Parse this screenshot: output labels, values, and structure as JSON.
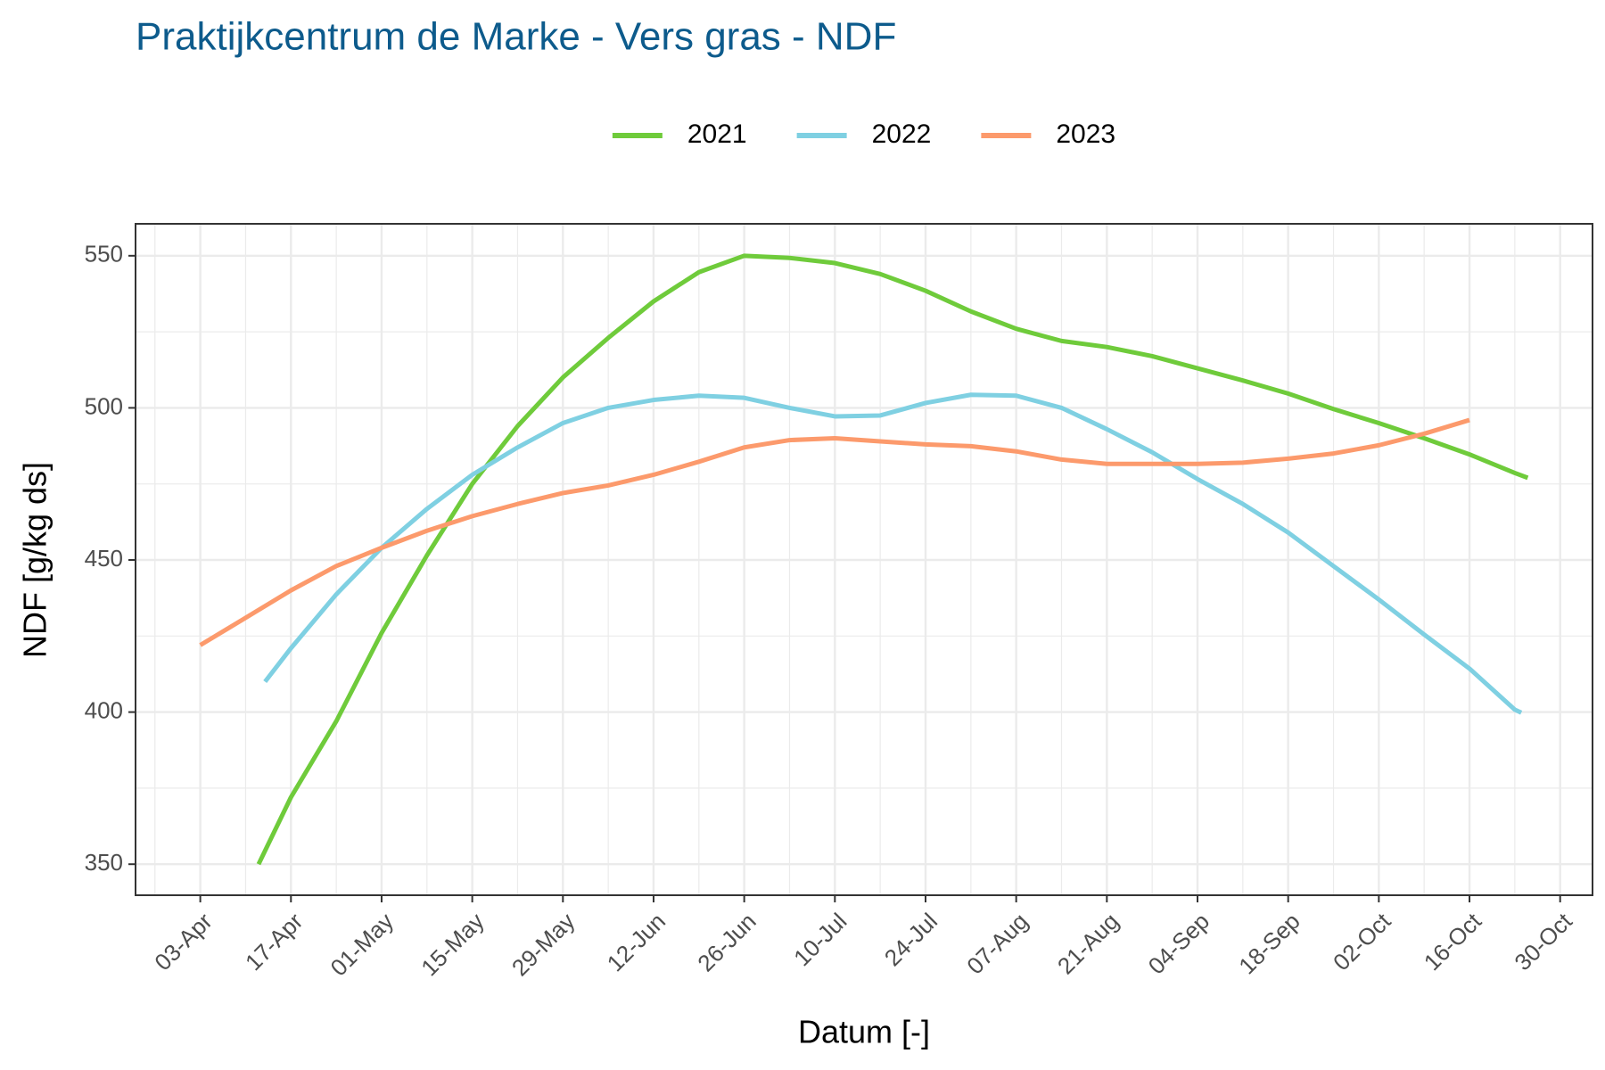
{
  "chart_data": {
    "type": "line",
    "title": "Praktijkcentrum de Marke - Vers gras - NDF",
    "x_label": "Datum [-]",
    "y_label": "NDF [g/kg ds]",
    "xlim": [
      "24-Mar",
      "04-Nov"
    ],
    "xticks": [
      "03-Apr",
      "17-Apr",
      "01-May",
      "15-May",
      "29-May",
      "12-Jun",
      "26-Jun",
      "10-Jul",
      "24-Jul",
      "07-Aug",
      "21-Aug",
      "04-Sep",
      "18-Sep",
      "02-Oct",
      "16-Oct",
      "30-Oct"
    ],
    "ylim": [
      339.8,
      560.5
    ],
    "yticks": [
      350,
      400,
      450,
      500,
      550
    ],
    "grid": true,
    "legend": "top",
    "series": [
      {
        "name": "2021",
        "color": "#6fcb3b",
        "x": [
          "12-Apr",
          "17-Apr",
          "24-Apr",
          "01-May",
          "08-May",
          "15-May",
          "22-May",
          "29-May",
          "05-Jun",
          "12-Jun",
          "19-Jun",
          "26-Jun",
          "03-Jul",
          "10-Jul",
          "17-Jul",
          "24-Jul",
          "31-Jul",
          "07-Aug",
          "14-Aug",
          "21-Aug",
          "28-Aug",
          "04-Sep",
          "11-Sep",
          "18-Sep",
          "25-Sep",
          "02-Oct",
          "09-Oct",
          "16-Oct",
          "23-Oct",
          "25-Oct"
        ],
        "values": [
          350,
          372,
          397,
          426,
          451.5,
          475,
          494,
          510,
          523,
          535,
          544.6,
          550,
          549.3,
          547.6,
          544,
          538.5,
          531.7,
          526,
          522,
          520,
          517,
          513,
          509,
          504.7,
          499.6,
          495,
          490,
          484.7,
          478.6,
          477
        ]
      },
      {
        "name": "2022",
        "color": "#7fd0e2",
        "x": [
          "13-Apr",
          "17-Apr",
          "24-Apr",
          "01-May",
          "08-May",
          "15-May",
          "22-May",
          "29-May",
          "05-Jun",
          "12-Jun",
          "19-Jun",
          "26-Jun",
          "03-Jul",
          "10-Jul",
          "17-Jul",
          "24-Jul",
          "31-Jul",
          "07-Aug",
          "14-Aug",
          "21-Aug",
          "28-Aug",
          "04-Sep",
          "11-Sep",
          "18-Sep",
          "25-Sep",
          "02-Oct",
          "09-Oct",
          "16-Oct",
          "23-Oct",
          "24-Oct"
        ],
        "values": [
          410,
          421,
          438.7,
          454,
          466.8,
          478,
          487,
          495,
          500,
          502.6,
          504,
          503.3,
          500,
          497.2,
          497.5,
          501.6,
          504.3,
          504,
          500,
          493,
          485.4,
          476.6,
          468.4,
          459,
          448,
          437,
          425.5,
          414.3,
          400.8,
          399.8
        ]
      },
      {
        "name": "2023",
        "color": "#fc9a6c",
        "x": [
          "03-Apr",
          "10-Apr",
          "17-Apr",
          "24-Apr",
          "01-May",
          "08-May",
          "15-May",
          "22-May",
          "29-May",
          "05-Jun",
          "12-Jun",
          "19-Jun",
          "26-Jun",
          "03-Jul",
          "10-Jul",
          "17-Jul",
          "24-Jul",
          "31-Jul",
          "07-Aug",
          "14-Aug",
          "21-Aug",
          "28-Aug",
          "04-Sep",
          "11-Sep",
          "18-Sep",
          "25-Sep",
          "02-Oct",
          "09-Oct",
          "16-Oct"
        ],
        "values": [
          422,
          431,
          440,
          448,
          454,
          459.6,
          464.4,
          468.4,
          472,
          474.5,
          478,
          482.3,
          487,
          489.4,
          490,
          489,
          488,
          487.4,
          485.7,
          483,
          481.6,
          481.6,
          481.6,
          482,
          483.3,
          485,
          487.7,
          491.5,
          496
        ]
      }
    ]
  }
}
